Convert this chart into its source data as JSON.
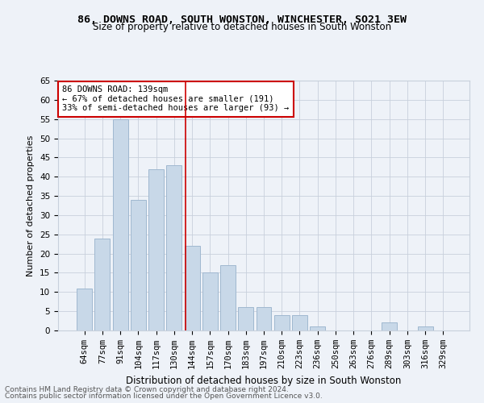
{
  "title_line1": "86, DOWNS ROAD, SOUTH WONSTON, WINCHESTER, SO21 3EW",
  "title_line2": "Size of property relative to detached houses in South Wonston",
  "xlabel": "Distribution of detached houses by size in South Wonston",
  "ylabel": "Number of detached properties",
  "categories": [
    "64sqm",
    "77sqm",
    "91sqm",
    "104sqm",
    "117sqm",
    "130sqm",
    "144sqm",
    "157sqm",
    "170sqm",
    "183sqm",
    "197sqm",
    "210sqm",
    "223sqm",
    "236sqm",
    "250sqm",
    "263sqm",
    "276sqm",
    "289sqm",
    "303sqm",
    "316sqm",
    "329sqm"
  ],
  "values": [
    11,
    24,
    55,
    34,
    42,
    43,
    22,
    15,
    17,
    6,
    6,
    4,
    4,
    1,
    0,
    0,
    0,
    2,
    0,
    1,
    0
  ],
  "bar_color": "#c8d8e8",
  "bar_edgecolor": "#a0b8d0",
  "vline_color": "#cc0000",
  "annotation_text": "86 DOWNS ROAD: 139sqm\n← 67% of detached houses are smaller (191)\n33% of semi-detached houses are larger (93) →",
  "annotation_box_color": "#ffffff",
  "annotation_box_edgecolor": "#cc0000",
  "ylim": [
    0,
    65
  ],
  "yticks": [
    0,
    5,
    10,
    15,
    20,
    25,
    30,
    35,
    40,
    45,
    50,
    55,
    60,
    65
  ],
  "grid_color": "#c8d0dc",
  "background_color": "#eef2f8",
  "footer_line1": "Contains HM Land Registry data © Crown copyright and database right 2024.",
  "footer_line2": "Contains public sector information licensed under the Open Government Licence v3.0.",
  "title_fontsize": 9.5,
  "subtitle_fontsize": 8.5,
  "axis_label_fontsize": 8,
  "tick_fontsize": 7.5,
  "annotation_fontsize": 7.5,
  "footer_fontsize": 6.5
}
